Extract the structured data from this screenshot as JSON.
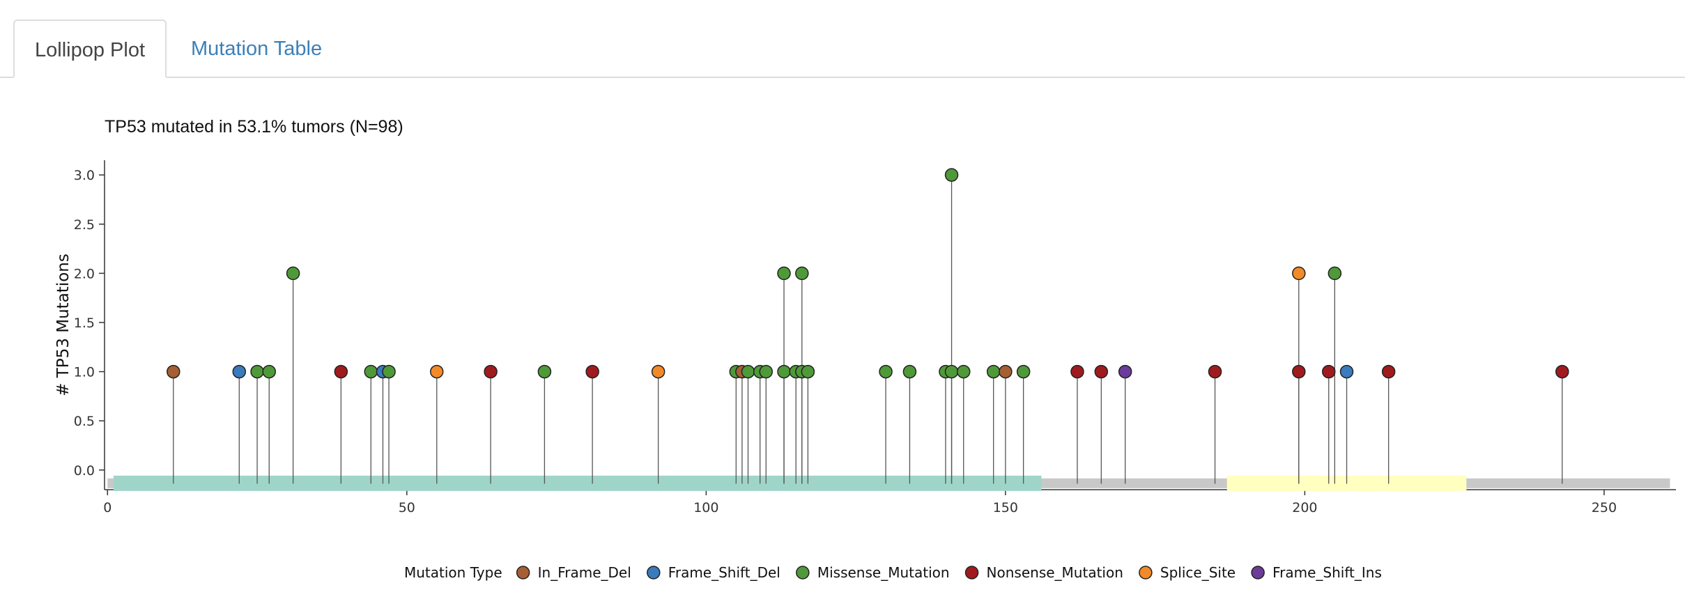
{
  "tabs": [
    {
      "label": "Lollipop Plot",
      "active": true
    },
    {
      "label": "Mutation Table",
      "active": false
    }
  ],
  "chart_data": {
    "type": "lollipop",
    "title": "TP53 mutated in 53.1% tumors (N=98)",
    "xlabel": "",
    "ylabel": "# TP53 Mutations",
    "xlim": [
      -0.5,
      262
    ],
    "ylim": [
      -0.2,
      3.15
    ],
    "x_ticks": [
      0,
      50,
      100,
      150,
      200,
      250
    ],
    "y_ticks": [
      0.0,
      0.5,
      1.0,
      1.5,
      2.0,
      2.5,
      3.0
    ],
    "y_tick_labels": [
      "0.0",
      "0.5",
      "1.0",
      "1.5",
      "2.0",
      "2.5",
      "3.0"
    ],
    "protein_length": 261,
    "domains": [
      {
        "start": 1,
        "end": 156,
        "color": "#9fd5c8"
      },
      {
        "start": 187,
        "end": 227,
        "color": "#ffffc0"
      }
    ],
    "legend": {
      "title": "Mutation Type",
      "placement": "bottom",
      "items": [
        {
          "type": "In_Frame_Del",
          "color": "#a65f32"
        },
        {
          "type": "Frame_Shift_Del",
          "color": "#3a7bbd"
        },
        {
          "type": "Missense_Mutation",
          "color": "#4f9a38"
        },
        {
          "type": "Nonsense_Mutation",
          "color": "#a01b1e"
        },
        {
          "type": "Splice_Site",
          "color": "#f28a2a"
        },
        {
          "type": "Frame_Shift_Ins",
          "color": "#6c3c9a"
        }
      ]
    },
    "points": [
      {
        "x": 11,
        "y": 1,
        "type": "In_Frame_Del"
      },
      {
        "x": 22,
        "y": 1,
        "type": "Frame_Shift_Del"
      },
      {
        "x": 25,
        "y": 1,
        "type": "Missense_Mutation"
      },
      {
        "x": 27,
        "y": 1,
        "type": "Missense_Mutation"
      },
      {
        "x": 31,
        "y": 2,
        "type": "Missense_Mutation"
      },
      {
        "x": 39,
        "y": 1,
        "type": "Nonsense_Mutation"
      },
      {
        "x": 44,
        "y": 1,
        "type": "Missense_Mutation"
      },
      {
        "x": 46,
        "y": 1,
        "type": "Frame_Shift_Del"
      },
      {
        "x": 47,
        "y": 1,
        "type": "Missense_Mutation"
      },
      {
        "x": 55,
        "y": 1,
        "type": "Splice_Site"
      },
      {
        "x": 64,
        "y": 1,
        "type": "Nonsense_Mutation"
      },
      {
        "x": 73,
        "y": 1,
        "type": "Missense_Mutation"
      },
      {
        "x": 81,
        "y": 1,
        "type": "Nonsense_Mutation"
      },
      {
        "x": 92,
        "y": 1,
        "type": "Splice_Site"
      },
      {
        "x": 105,
        "y": 1,
        "type": "Missense_Mutation"
      },
      {
        "x": 106,
        "y": 1,
        "type": "In_Frame_Del"
      },
      {
        "x": 107,
        "y": 1,
        "type": "Missense_Mutation"
      },
      {
        "x": 109,
        "y": 1,
        "type": "Missense_Mutation"
      },
      {
        "x": 110,
        "y": 1,
        "type": "Missense_Mutation"
      },
      {
        "x": 113,
        "y": 2,
        "type": "Missense_Mutation"
      },
      {
        "x": 113,
        "y": 1,
        "type": "Missense_Mutation"
      },
      {
        "x": 115,
        "y": 1,
        "type": "Missense_Mutation"
      },
      {
        "x": 116,
        "y": 2,
        "type": "Missense_Mutation"
      },
      {
        "x": 116,
        "y": 1,
        "type": "Missense_Mutation"
      },
      {
        "x": 117,
        "y": 1,
        "type": "Missense_Mutation"
      },
      {
        "x": 130,
        "y": 1,
        "type": "Missense_Mutation"
      },
      {
        "x": 134,
        "y": 1,
        "type": "Missense_Mutation"
      },
      {
        "x": 140,
        "y": 1,
        "type": "Missense_Mutation"
      },
      {
        "x": 141,
        "y": 3,
        "type": "Missense_Mutation"
      },
      {
        "x": 141,
        "y": 1,
        "type": "Missense_Mutation"
      },
      {
        "x": 143,
        "y": 1,
        "type": "Missense_Mutation"
      },
      {
        "x": 148,
        "y": 1,
        "type": "Missense_Mutation"
      },
      {
        "x": 150,
        "y": 1,
        "type": "In_Frame_Del"
      },
      {
        "x": 153,
        "y": 1,
        "type": "Missense_Mutation"
      },
      {
        "x": 162,
        "y": 1,
        "type": "Nonsense_Mutation"
      },
      {
        "x": 166,
        "y": 1,
        "type": "Nonsense_Mutation"
      },
      {
        "x": 170,
        "y": 1,
        "type": "Frame_Shift_Ins"
      },
      {
        "x": 185,
        "y": 1,
        "type": "Nonsense_Mutation"
      },
      {
        "x": 199,
        "y": 2,
        "type": "Splice_Site"
      },
      {
        "x": 199,
        "y": 1,
        "type": "Nonsense_Mutation"
      },
      {
        "x": 204,
        "y": 1,
        "type": "Nonsense_Mutation"
      },
      {
        "x": 205,
        "y": 2,
        "type": "Missense_Mutation"
      },
      {
        "x": 207,
        "y": 1,
        "type": "Frame_Shift_Del"
      },
      {
        "x": 214,
        "y": 1,
        "type": "Nonsense_Mutation"
      },
      {
        "x": 243,
        "y": 1,
        "type": "Nonsense_Mutation"
      }
    ]
  }
}
